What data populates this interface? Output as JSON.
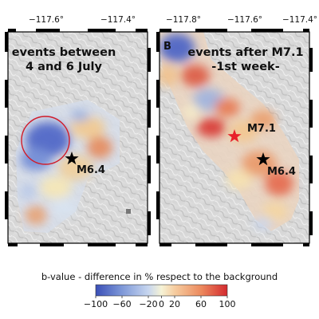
{
  "panels": [
    {
      "letter": "",
      "title_lines": [
        "events between",
        "4 and 6 July"
      ],
      "lon_ticks": [
        "−117.6°",
        "−117.4°"
      ],
      "markers": [
        {
          "type": "star",
          "color": "#000000",
          "label": "M6.4"
        }
      ],
      "annotation": {
        "type": "circle",
        "color": "#d01c2a"
      }
    },
    {
      "letter": "B",
      "title_lines": [
        "events after M7.1",
        "-1st week-"
      ],
      "lon_ticks": [
        "−117.8°",
        "−117.6°",
        "−117.4°"
      ],
      "markers": [
        {
          "type": "star",
          "color": "#e8202a",
          "label": "M7.1"
        },
        {
          "type": "star",
          "color": "#000000",
          "label": "M6.4"
        }
      ]
    }
  ],
  "colorbar": {
    "title": "b-value - difference in % respect to the background",
    "ticks": [
      "−100",
      "−60",
      "−20",
      "0",
      "20",
      "60",
      "100"
    ],
    "range": [
      -100,
      100
    ],
    "colors": [
      "#3a4fb7",
      "#7e98d8",
      "#c7d6ef",
      "#f6f3d6",
      "#f6cda0",
      "#ec8a5e",
      "#d42a2f"
    ]
  }
}
